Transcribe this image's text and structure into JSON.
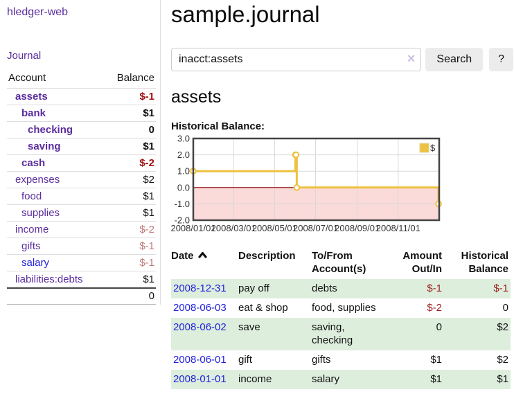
{
  "colors": {
    "purple": "#5b2d9e",
    "blue": "#2222dd",
    "neg_bold": "#a01010",
    "neg_soft": "#c17878",
    "neg_table": "#9d1d1d",
    "row_green": "#ddeedd",
    "border_gray": "#dddddd",
    "button_bg": "#ececec"
  },
  "sidebar": {
    "brand": "hledger-web",
    "journal_link": "Journal",
    "accounts_header": {
      "account": "Account",
      "balance": "Balance"
    },
    "accounts": [
      {
        "name": "assets",
        "depth": 1,
        "bold": true,
        "balance": "$-1",
        "neg": true
      },
      {
        "name": "bank",
        "depth": 2,
        "bold": true,
        "balance": "$1",
        "neg": false
      },
      {
        "name": "checking",
        "depth": 3,
        "bold": true,
        "balance": "0",
        "neg": false
      },
      {
        "name": "saving",
        "depth": 3,
        "bold": true,
        "balance": "$1",
        "neg": false
      },
      {
        "name": "cash",
        "depth": 2,
        "bold": true,
        "balance": "$-2",
        "neg": true
      },
      {
        "name": "expenses",
        "depth": 1,
        "bold": false,
        "balance": "$2",
        "neg": false
      },
      {
        "name": "food",
        "depth": 2,
        "bold": false,
        "balance": "$1",
        "neg": false
      },
      {
        "name": "supplies",
        "depth": 2,
        "bold": false,
        "balance": "$1",
        "neg": false
      },
      {
        "name": "income",
        "depth": 1,
        "bold": false,
        "balance": "$-2",
        "neg": true
      },
      {
        "name": "gifts",
        "depth": 2,
        "bold": false,
        "balance": "$-1",
        "neg": true
      },
      {
        "name": "salary",
        "depth": 2,
        "bold": false,
        "balance": "$-1",
        "neg": true,
        "link_color": "blue"
      },
      {
        "name": "liabilities:debts",
        "depth": 1,
        "bold": false,
        "balance": "$1",
        "neg": false
      }
    ],
    "total": "0"
  },
  "main": {
    "title": "sample.journal",
    "search": {
      "value": "inacct:assets",
      "clear_icon": "×",
      "button_label": "Search",
      "help_label": "?"
    },
    "account_heading": "assets"
  },
  "chart_data": {
    "type": "line",
    "step": true,
    "title": "Historical Balance:",
    "legend": "$",
    "legend_position": "top-right",
    "grid": true,
    "x_range": [
      "2008-01-01",
      "2009-01-01"
    ],
    "y_range": [
      -2,
      3
    ],
    "x_ticks": [
      "2008/01/01",
      "2008/03/01",
      "2008/05/01",
      "2008/07/01",
      "2008/09/01",
      "2008/11/01"
    ],
    "y_ticks": [
      "3.0",
      "2.0",
      "1.0",
      "0.0",
      "-1.0",
      "-2.0"
    ],
    "series": [
      {
        "name": "$",
        "color": "#edc240",
        "points": [
          {
            "x": "2008-01-01",
            "y": 1
          },
          {
            "x": "2008-06-01",
            "y": 2
          },
          {
            "x": "2008-06-02",
            "y": 2
          },
          {
            "x": "2008-06-03",
            "y": 0
          },
          {
            "x": "2008-12-31",
            "y": -1
          }
        ]
      }
    ],
    "negative_region_color": "#fbdada",
    "zero_line_color": "#8b0000",
    "grid_color": "#d8d8d8",
    "border_color": "#444444"
  },
  "register": {
    "headers": {
      "date": "Date",
      "description": "Description",
      "accounts": "To/From Account(s)",
      "amount": "Amount Out/In",
      "balance": "Historical Balance"
    },
    "rows": [
      {
        "date": "2008-12-31",
        "description": "pay off",
        "accounts": "debts",
        "amount": "$-1",
        "amount_neg": true,
        "balance": "$-1",
        "balance_neg": true
      },
      {
        "date": "2008-06-03",
        "description": "eat & shop",
        "accounts": "food, supplies",
        "amount": "$-2",
        "amount_neg": true,
        "balance": "0",
        "balance_neg": false
      },
      {
        "date": "2008-06-02",
        "description": "save",
        "accounts": "saving, checking",
        "amount": "0",
        "amount_neg": false,
        "balance": "$2",
        "balance_neg": false
      },
      {
        "date": "2008-06-01",
        "description": "gift",
        "accounts": "gifts",
        "amount": "$1",
        "amount_neg": false,
        "balance": "$2",
        "balance_neg": false
      },
      {
        "date": "2008-01-01",
        "description": "income",
        "accounts": "salary",
        "amount": "$1",
        "amount_neg": false,
        "balance": "$1",
        "balance_neg": false
      }
    ]
  }
}
